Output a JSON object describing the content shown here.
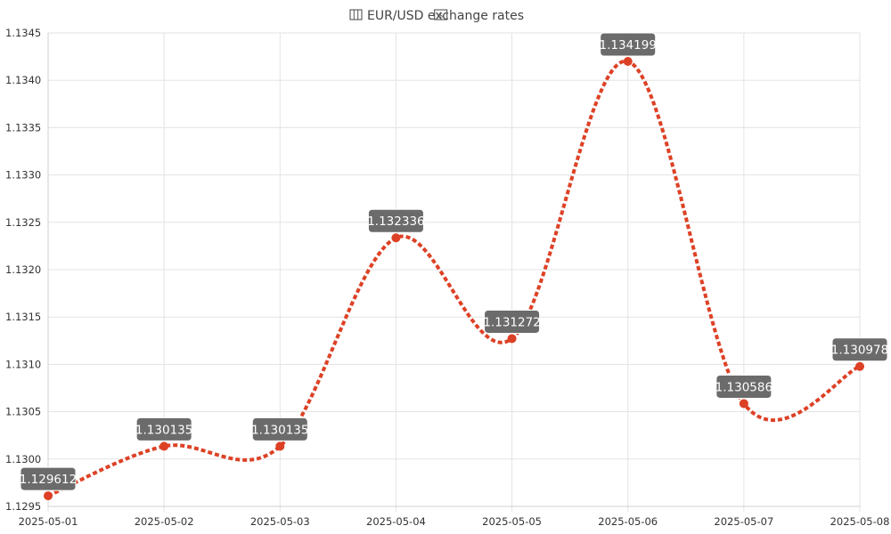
{
  "chart_data": {
    "type": "line",
    "title": "EUR/USD exchange rates",
    "title_icons": [
      "map-icon",
      "banknote-icon"
    ],
    "x": [
      "2025-05-01",
      "2025-05-02",
      "2025-05-03",
      "2025-05-04",
      "2025-05-05",
      "2025-05-06",
      "2025-05-07",
      "2025-05-08"
    ],
    "series": [
      {
        "values": [
          1.129612,
          1.130135,
          1.130135,
          1.132336,
          1.131272,
          1.134199,
          1.130586,
          1.130978
        ],
        "labels": [
          "1.129612",
          "1.130135",
          "1.130135",
          "1.132336",
          "1.131272",
          "1.134199",
          "1.130586",
          "1.130978"
        ],
        "color": "#dd4125"
      }
    ],
    "ylim": [
      1.1295,
      1.1345
    ],
    "y_ticks": [
      "1.1295",
      "1.1300",
      "1.1305",
      "1.1310",
      "1.1315",
      "1.1320",
      "1.1325",
      "1.1330",
      "1.1335",
      "1.1340",
      "1.1345"
    ],
    "xlabel": "",
    "ylabel": "",
    "grid": true,
    "legend": "none",
    "label_color": "#6b6b6b"
  }
}
